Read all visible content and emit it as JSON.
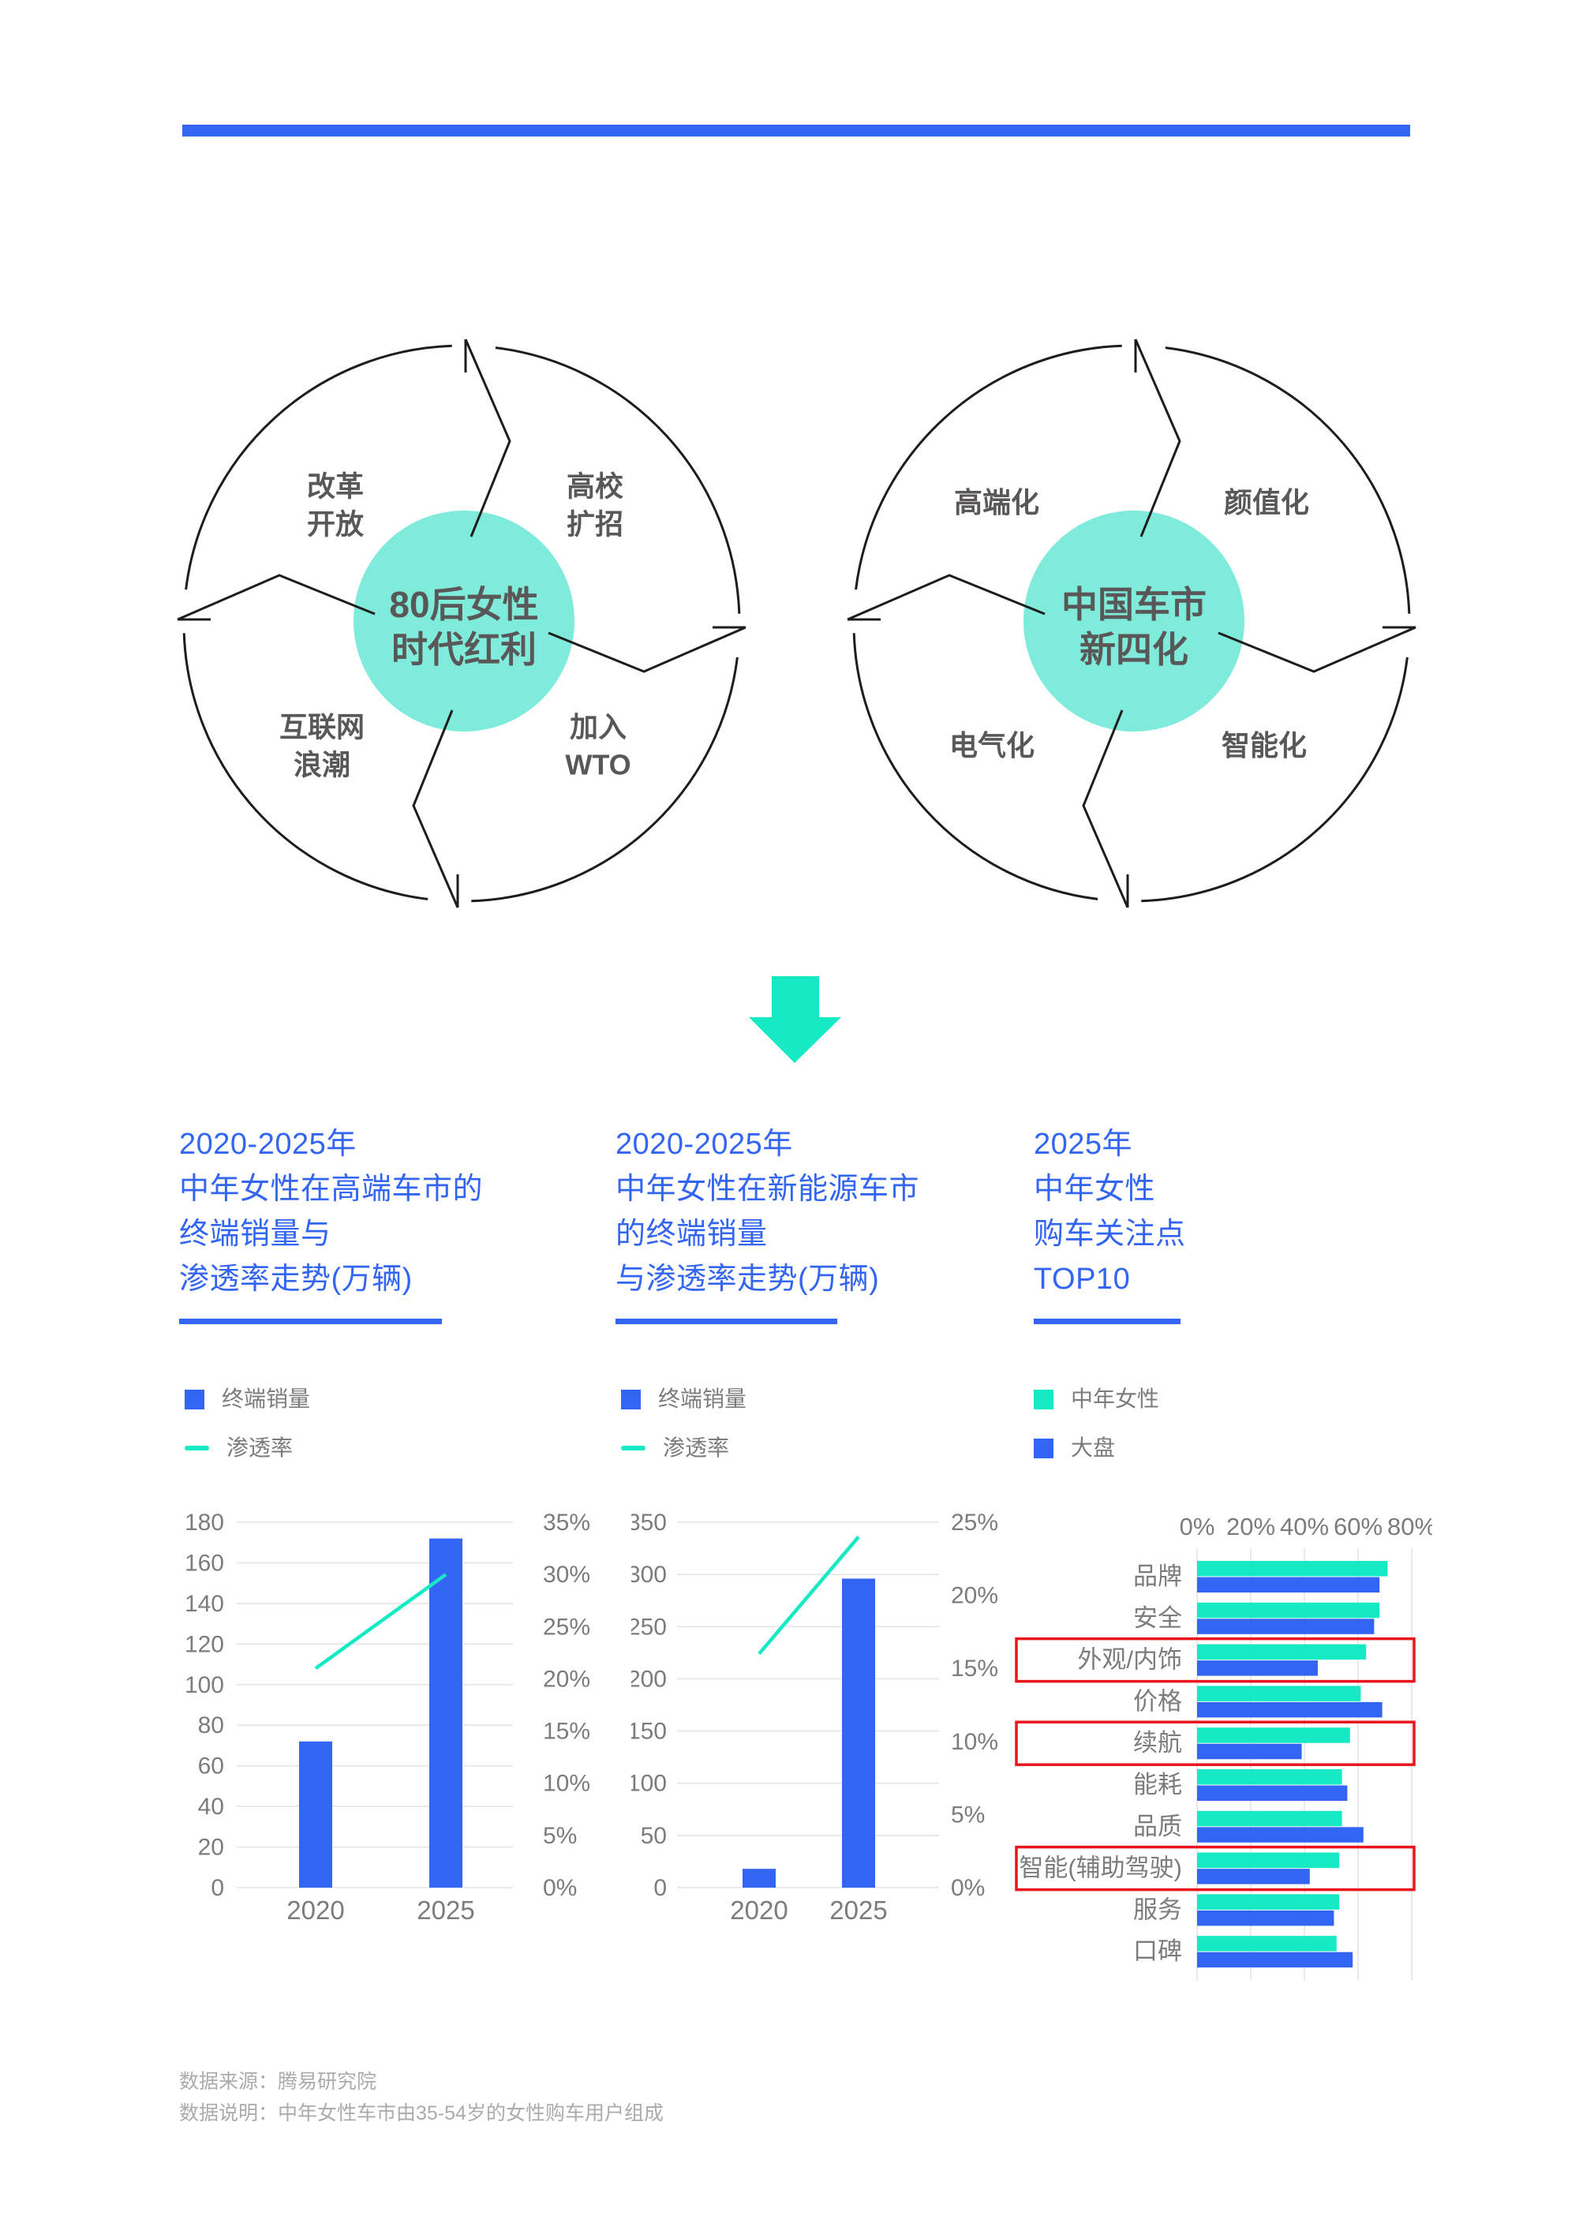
{
  "colors": {
    "accent_blue": "#3365F3",
    "teal_bright": "#15EAC4",
    "teal_soft": "#7FEBDA",
    "text_dark": "#595757",
    "text_gray": "#7C7C7C",
    "text_light": "#ABABAB",
    "grid_gray": "#E4E4E8",
    "highlight_red": "#E8151D",
    "line_black": "#1F1C1C"
  },
  "diagrams": {
    "left": {
      "center": "80后女性\n时代红利",
      "labels": {
        "top_left": "改革\n开放",
        "top_right": "高校\n扩招",
        "bottom_left": "互联网\n浪潮",
        "bottom_right": "加入\nWTO"
      }
    },
    "right": {
      "center": "中国车市\n新四化",
      "labels": {
        "top_left": "高端化",
        "top_right": "颜值化",
        "bottom_left": "电气化",
        "bottom_right": "智能化"
      }
    }
  },
  "sections": [
    {
      "title": "2020-2025年\n中年女性在高端车市的\n终端销量与\n渗透率走势(万辆)",
      "legend": [
        {
          "swatch": "square",
          "label": "终端销量"
        },
        {
          "swatch": "line",
          "label": "渗透率"
        }
      ]
    },
    {
      "title": "2020-2025年\n中年女性在新能源车市\n的终端销量\n与渗透率走势(万辆)",
      "legend": [
        {
          "swatch": "square",
          "label": "终端销量"
        },
        {
          "swatch": "line",
          "label": "渗透率"
        }
      ]
    },
    {
      "title": "2025年\n中年女性\n购车关注点\nTOP10",
      "legend": [
        {
          "swatch": "square-teal",
          "label": "中年女性"
        },
        {
          "swatch": "square-blue",
          "label": "大盘"
        }
      ]
    }
  ],
  "chart_data": [
    {
      "type": "bar",
      "title": "2020-2025年中年女性在高端车市的终端销量与渗透率走势(万辆)",
      "categories": [
        "2020",
        "2025"
      ],
      "series": [
        {
          "name": "终端销量",
          "type": "bar",
          "axis": "left",
          "values": [
            72,
            172
          ]
        },
        {
          "name": "渗透率",
          "type": "line",
          "axis": "right",
          "values_percent": [
            21,
            30
          ]
        }
      ],
      "left_axis": {
        "ticks": [
          0,
          20,
          40,
          60,
          80,
          100,
          120,
          140,
          160,
          180
        ],
        "max": 180
      },
      "right_axis": {
        "ticks_percent": [
          0,
          5,
          10,
          15,
          20,
          25,
          30,
          35
        ],
        "max": 35
      },
      "grid": true,
      "legend_position": "top"
    },
    {
      "type": "bar",
      "title": "2020-2025年中年女性在新能源车市的终端销量与渗透率走势(万辆)",
      "categories": [
        "2020",
        "2025"
      ],
      "series": [
        {
          "name": "终端销量",
          "type": "bar",
          "axis": "left",
          "values": [
            18,
            296
          ]
        },
        {
          "name": "渗透率",
          "type": "line",
          "axis": "right",
          "values_percent": [
            16,
            24
          ]
        }
      ],
      "left_axis": {
        "ticks": [
          0,
          50,
          100,
          150,
          200,
          250,
          300,
          350
        ],
        "max": 350
      },
      "right_axis": {
        "ticks_percent": [
          0,
          5,
          10,
          15,
          20,
          25
        ],
        "max": 25
      },
      "grid": true,
      "legend_position": "top"
    },
    {
      "type": "hbar",
      "title": "2025年中年女性购车关注点TOP10",
      "categories": [
        "品牌",
        "安全",
        "外观/内饰",
        "价格",
        "续航",
        "能耗",
        "品质",
        "智能(辅助驾驶)",
        "服务",
        "口碑"
      ],
      "series": [
        {
          "name": "中年女性",
          "values_percent": [
            71,
            68,
            63,
            61,
            57,
            54,
            54,
            53,
            53,
            52
          ]
        },
        {
          "name": "大盘",
          "values_percent": [
            68,
            66,
            45,
            69,
            39,
            56,
            62,
            42,
            51,
            58
          ]
        }
      ],
      "x_axis": {
        "ticks_percent": [
          0,
          20,
          40,
          60,
          80
        ],
        "max": 80
      },
      "highlighted_categories": [
        "外观/内饰",
        "续航",
        "智能(辅助驾驶)"
      ],
      "grid": true,
      "legend_position": "top"
    }
  ],
  "footer": {
    "line1": "数据来源：腾易研究院",
    "line2": "数据说明：中年女性车市由35-54岁的女性购车用户组成"
  }
}
